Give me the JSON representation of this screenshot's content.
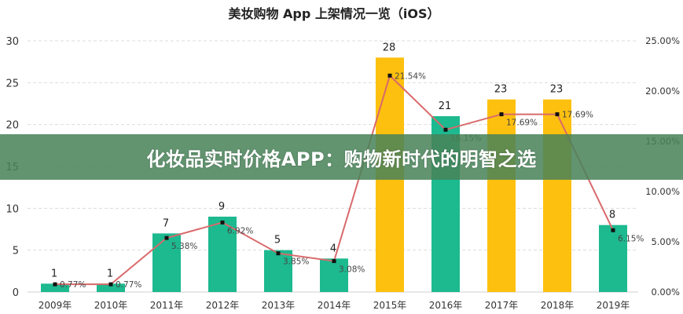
{
  "title": "美妆购物 App 上架情况一览（iOS）",
  "banner": {
    "text": "化妆品实时价格APP：购物新时代的明智之选"
  },
  "colors": {
    "bar_green": "#1db98f",
    "bar_yellow": "#fdc00f",
    "line": "#d9696b",
    "marker": "#111111",
    "banner_bg": "#4a8258"
  },
  "left_axis": {
    "ticks": [
      "0",
      "5",
      "10",
      "15",
      "20",
      "25",
      "30"
    ]
  },
  "right_axis": {
    "ticks": [
      "0.00%",
      "5.00%",
      "10.00%",
      "15.00%",
      "20.00%",
      "25.00%"
    ]
  },
  "chart_data": {
    "type": "bar",
    "title": "美妆购物 App 上架情况一览（iOS）",
    "xlabel": "",
    "ylabel": "",
    "categories": [
      "2009年",
      "2010年",
      "2011年",
      "2012年",
      "2013年",
      "2014年",
      "2015年",
      "2016年",
      "2017年",
      "2018年",
      "2019年"
    ],
    "series": [
      {
        "name": "上架数量",
        "type": "bar",
        "axis": "left",
        "values": [
          1,
          1,
          7,
          9,
          5,
          4,
          28,
          21,
          23,
          23,
          8
        ],
        "colors": [
          "green",
          "green",
          "green",
          "green",
          "green",
          "green",
          "yellow",
          "green",
          "yellow",
          "yellow",
          "green"
        ]
      },
      {
        "name": "占比",
        "type": "line",
        "axis": "right",
        "values": [
          0.77,
          0.77,
          5.38,
          6.92,
          3.85,
          3.08,
          21.54,
          16.15,
          17.69,
          17.69,
          6.15
        ],
        "labels": [
          "0.77%",
          "0.77%",
          "5.38%",
          "6.92%",
          "3.85%",
          "3.08%",
          "21.54%",
          "16.15%",
          "17.69%",
          "17.69%",
          "6.15%"
        ]
      }
    ],
    "ylim": [
      0,
      30
    ],
    "y2lim": [
      0,
      25
    ],
    "yticks": [
      0,
      5,
      10,
      15,
      20,
      25,
      30
    ],
    "y2ticks": [
      "0.00%",
      "5.00%",
      "10.00%",
      "15.00%",
      "20.00%",
      "25.00%"
    ],
    "grid": true,
    "legend": "none"
  }
}
